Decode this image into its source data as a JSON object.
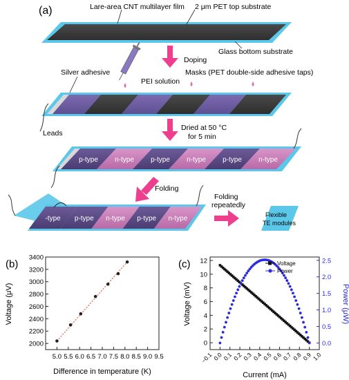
{
  "panel_a": {
    "panel_label": "(a)",
    "labels": {
      "cnt_film": "Lare-area CNT multilayer film",
      "pet_top": "2 μm PET top substrate",
      "glass_bottom": "Glass bottom substrate",
      "doping": "Doping",
      "silver_adhesive": "Silver adhesive",
      "pei_solution": "PEI solution",
      "masks": "Masks (PET double-side adhesive taps)",
      "leads": "Leads",
      "dried_line1": "Dried at 50 °C",
      "dried_line2": "for 5 min",
      "folding": "Folding",
      "folding_repeat_line1": "Folding",
      "folding_repeat_line2": "repeatedly",
      "flexible_line1": "Flexible",
      "flexible_line2": "TE modules"
    },
    "strip3_segments": [
      "p-type",
      "n-type",
      "p-type",
      "n-type",
      "p-type",
      "n-type"
    ],
    "strip4_segments": [
      "-type",
      "p-type",
      "n-type",
      "p-type",
      "n-type"
    ],
    "colors": {
      "substrate": "#5bc8ea",
      "film_dark": "#3b3b3b",
      "p_type": "#5a4a86",
      "n_type": "#c77fb8",
      "arrow": "#ee3f8e"
    }
  },
  "chart_data": [
    {
      "panel_label": "(b)",
      "type": "scatter",
      "xlabel": "Difference in temperature (K)",
      "ylabel": "Voltage (μV)",
      "xlim": [
        4.5,
        9.5
      ],
      "ylim": [
        1900,
        3400
      ],
      "xticks": [
        "5.0",
        "5.5",
        "6.0",
        "6.5",
        "7.0",
        "7.5",
        "8.0",
        "8.5",
        "9.0",
        "9.5"
      ],
      "yticks": [
        "2000",
        "2200",
        "2400",
        "2600",
        "2800",
        "3000",
        "3200",
        "3400"
      ],
      "x": [
        5.0,
        5.6,
        6.05,
        6.7,
        7.25,
        7.7,
        8.1
      ],
      "y": [
        2040,
        2300,
        2480,
        2760,
        2960,
        3130,
        3320
      ],
      "fit": {
        "x": [
          5.0,
          8.1
        ],
        "y": [
          2040,
          3320
        ],
        "color": "#e8604a"
      },
      "grid": false
    },
    {
      "panel_label": "(c)",
      "type": "scatter",
      "xlabel": "Current (mA)",
      "ylabel": "Voltage (mV)",
      "y2label": "Power (μW)",
      "xlim": [
        -0.1,
        1.0
      ],
      "ylim": [
        -1,
        12.5
      ],
      "y2lim": [
        -0.2,
        2.6
      ],
      "xticks": [
        "−0.1",
        "0.0",
        "0.1",
        "0.2",
        "0.3",
        "0.4",
        "0.5",
        "0.6",
        "0.7",
        "0.8",
        "0.9",
        "1.0"
      ],
      "yticks": [
        "0",
        "2",
        "4",
        "6",
        "8",
        "10",
        "12"
      ],
      "y2ticks": [
        "0.0",
        "0.5",
        "1.0",
        "1.5",
        "2.0",
        "2.5"
      ],
      "legend": [
        "Voltage",
        "Power"
      ],
      "legend_position": "top-right",
      "series": [
        {
          "name": "Voltage",
          "axis": "left",
          "color": "#111111",
          "marker": "square",
          "i0": 0.0,
          "v0": 11.3,
          "isc": 0.9,
          "points": 60
        },
        {
          "name": "Power",
          "axis": "right",
          "color": "#2a2ae0",
          "marker": "circle",
          "i0": 0.0,
          "v0": 11.3,
          "isc": 0.9,
          "points": 60
        }
      ],
      "grid": false
    }
  ]
}
